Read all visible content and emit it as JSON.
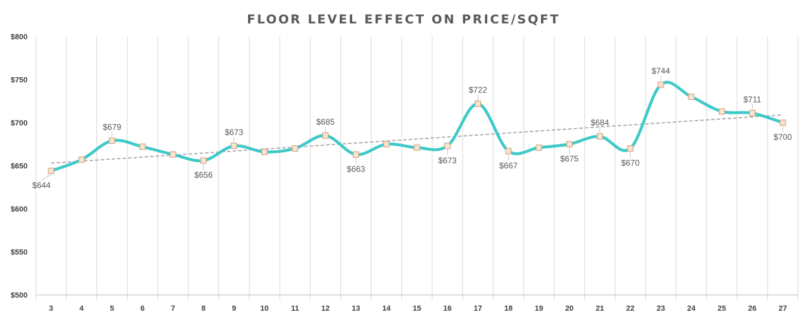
{
  "chart_data": {
    "type": "line",
    "title": "FLOOR LEVEL EFFECT ON PRICE/SQFT",
    "xlabel": "",
    "ylabel": "",
    "categories": [
      "3",
      "4",
      "5",
      "6",
      "7",
      "8",
      "9",
      "10",
      "11",
      "12",
      "13",
      "14",
      "15",
      "16",
      "17",
      "18",
      "19",
      "20",
      "21",
      "22",
      "23",
      "24",
      "25",
      "26",
      "27"
    ],
    "series": [
      {
        "values": [
          644,
          657,
          679,
          672,
          663,
          656,
          673,
          666,
          670,
          685,
          663,
          675,
          671,
          673,
          722,
          667,
          671,
          675,
          684,
          670,
          744,
          730,
          713,
          711,
          700
        ],
        "data_labels": [
          "$644",
          "",
          "$679",
          "",
          "",
          "$656",
          "$673",
          "",
          "",
          "$685",
          "$663",
          "",
          "",
          "$673",
          "$722",
          "$667",
          "",
          "$675",
          "$684",
          "$670",
          "$744",
          "",
          "",
          "$711",
          "$700"
        ],
        "color": "#3ec9c9",
        "marker_fill": "#fbe3cf",
        "marker_stroke": "#c8a27a"
      }
    ],
    "trendline": {
      "type": "linear",
      "from": 653,
      "to": 709,
      "color": "#a6a6a6",
      "style": "dashed"
    },
    "yaxis": {
      "min": 500,
      "max": 800,
      "step": 50,
      "tick_labels": [
        "$500",
        "$550",
        "$600",
        "$650",
        "$700",
        "$750",
        "$800"
      ]
    },
    "grid": {
      "vertical": true,
      "horizontal": false
    },
    "legend": "none"
  }
}
